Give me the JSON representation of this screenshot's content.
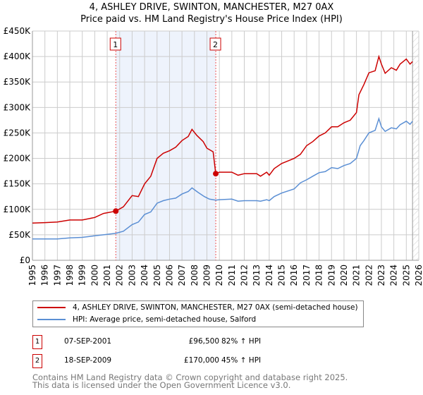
{
  "chart_data": {
    "type": "line",
    "title": "4, ASHLEY DRIVE, SWINTON, MANCHESTER, M27 0AX",
    "subtitle": "Price paid vs. HM Land Registry's House Price Index (HPI)",
    "xlim": [
      1995,
      2026
    ],
    "ylim": [
      0,
      450000
    ],
    "yticks": [
      {
        "v": 0,
        "label": "£0"
      },
      {
        "v": 50000,
        "label": "£50K"
      },
      {
        "v": 100000,
        "label": "£100K"
      },
      {
        "v": 150000,
        "label": "£150K"
      },
      {
        "v": 200000,
        "label": "£200K"
      },
      {
        "v": 250000,
        "label": "£250K"
      },
      {
        "v": 300000,
        "label": "£300K"
      },
      {
        "v": 350000,
        "label": "£350K"
      },
      {
        "v": 400000,
        "label": "£400K"
      },
      {
        "v": 450000,
        "label": "£450K"
      }
    ],
    "xticks": [
      "1995",
      "1996",
      "1997",
      "1998",
      "1999",
      "2000",
      "2001",
      "2002",
      "2003",
      "2004",
      "2005",
      "2006",
      "2007",
      "2008",
      "2009",
      "2010",
      "2011",
      "2012",
      "2013",
      "2014",
      "2015",
      "2016",
      "2017",
      "2018",
      "2019",
      "2020",
      "2021",
      "2022",
      "2023",
      "2024",
      "2025",
      "2026"
    ],
    "grid": true,
    "forecast_from": 2025.5,
    "shaded_range": [
      2001.69,
      2009.71
    ],
    "series": [
      {
        "name": "4, ASHLEY DRIVE, SWINTON, MANCHESTER, M27 0AX (semi-detached house)",
        "color": "#cc0000",
        "x": [
          1995,
          1996,
          1997,
          1998,
          1999,
          2000,
          2000.7,
          2001.69,
          2002.3,
          2003,
          2003.5,
          2004,
          2004.5,
          2005,
          2005.5,
          2006,
          2006.5,
          2007,
          2007.5,
          2007.8,
          2008.2,
          2008.7,
          2009,
          2009.5,
          2009.71,
          2010,
          2011,
          2011.5,
          2012,
          2013,
          2013.3,
          2013.8,
          2014,
          2014.4,
          2015,
          2015.5,
          2016,
          2016.5,
          2017,
          2017.5,
          2018,
          2018.5,
          2019,
          2019.5,
          2020,
          2020.5,
          2021,
          2021.2,
          2021.6,
          2022,
          2022.5,
          2022.8,
          2023,
          2023.3,
          2023.8,
          2024.2,
          2024.5,
          2025,
          2025.3,
          2025.5
        ],
        "y": [
          73000,
          74000,
          75000,
          79000,
          79000,
          84000,
          92000,
          96500,
          105000,
          127000,
          125000,
          150000,
          165000,
          200000,
          210000,
          215000,
          222000,
          235000,
          243000,
          257000,
          245000,
          233000,
          220000,
          213000,
          170000,
          173000,
          173000,
          167000,
          170000,
          170000,
          165000,
          173000,
          167000,
          180000,
          190000,
          195000,
          200000,
          208000,
          225000,
          233000,
          244000,
          250000,
          262000,
          262000,
          270000,
          275000,
          290000,
          325000,
          345000,
          368000,
          372000,
          400000,
          385000,
          367000,
          378000,
          373000,
          385000,
          395000,
          385000,
          390000
        ]
      },
      {
        "name": "HPI: Average price, semi-detached house, Salford",
        "color": "#5b8fd4",
        "x": [
          1995,
          1997,
          1998,
          1999,
          2000,
          2001,
          2001.69,
          2002.3,
          2003,
          2003.5,
          2004,
          2004.5,
          2005,
          2005.5,
          2006,
          2006.5,
          2007,
          2007.5,
          2007.8,
          2008.3,
          2008.8,
          2009.2,
          2009.71,
          2010,
          2011,
          2011.5,
          2012,
          2013,
          2013.3,
          2013.8,
          2014,
          2014.4,
          2015,
          2016,
          2016.5,
          2017,
          2017.5,
          2018,
          2018.5,
          2019,
          2019.5,
          2020,
          2020.5,
          2021,
          2021.3,
          2021.6,
          2022,
          2022.5,
          2022.8,
          2023,
          2023.3,
          2023.8,
          2024.2,
          2024.5,
          2025,
          2025.3,
          2025.5
        ],
        "y": [
          42000,
          42000,
          44000,
          45000,
          48000,
          51000,
          53000,
          57000,
          70000,
          75000,
          90000,
          95000,
          112000,
          117000,
          120000,
          122000,
          130000,
          135000,
          142000,
          133000,
          125000,
          120000,
          118000,
          119000,
          120000,
          116000,
          117000,
          117000,
          116000,
          119000,
          117000,
          125000,
          132000,
          140000,
          152000,
          158000,
          165000,
          172000,
          174000,
          182000,
          180000,
          186000,
          190000,
          200000,
          225000,
          235000,
          250000,
          255000,
          278000,
          262000,
          253000,
          260000,
          258000,
          266000,
          273000,
          267000,
          273000
        ]
      }
    ],
    "annotations": [
      {
        "label": "1",
        "x": 2001.69,
        "y": 96500
      },
      {
        "label": "2",
        "x": 2009.71,
        "y": 170000
      }
    ]
  },
  "legend": {
    "items": [
      "4, ASHLEY DRIVE, SWINTON, MANCHESTER, M27 0AX (semi-detached house)",
      "HPI: Average price, semi-detached house, Salford"
    ]
  },
  "table": [
    {
      "num": "1",
      "date": "07-SEP-2001",
      "price": "£96,500",
      "hpi": "82% ↑ HPI"
    },
    {
      "num": "2",
      "date": "18-SEP-2009",
      "price": "£170,000",
      "hpi": "45% ↑ HPI"
    }
  ],
  "footer": {
    "line1": "Contains HM Land Registry data © Crown copyright and database right 2025.",
    "line2": "This data is licensed under the Open Government Licence v3.0."
  }
}
